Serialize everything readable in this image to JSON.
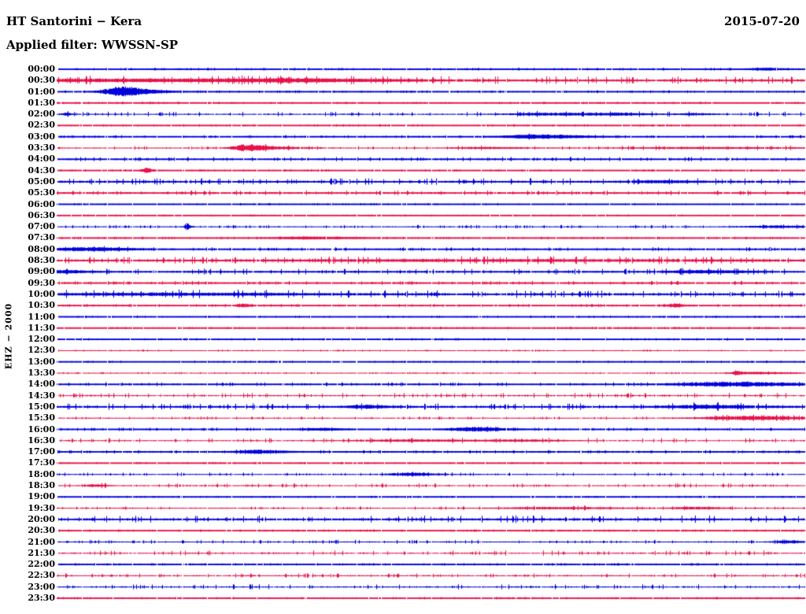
{
  "header": {
    "title": "HT Santorini − Kera",
    "date": "2015-07-20",
    "filter": "Applied filter: WWSSN-SP"
  },
  "side": {
    "channel_label": "EHZ − 2000"
  },
  "chart_data": {
    "type": "line",
    "subtype": "helicorder-day-plot",
    "title": "HT Santorini − Kera",
    "date": "2015-07-20",
    "applied_filter": "WWSSN-SP",
    "channel": "EHZ",
    "gain_scale": "2000",
    "row_duration_minutes": 30,
    "rows_count": 48,
    "legend_position": "none",
    "grid": false,
    "palette": {
      "blue": "#0000dd",
      "red": "#e8114b",
      "text": "#000000",
      "background": "#ffffff"
    },
    "rows": [
      {
        "time": "00:00",
        "color": "blue",
        "thick": 2,
        "noise": 0.4,
        "events": [
          {
            "pos": 0.945,
            "width": 0.015,
            "amp": 1.0
          }
        ]
      },
      {
        "time": "00:30",
        "color": "red",
        "thick": 2,
        "noise": 1.9,
        "events": [
          {
            "pos": 0.1,
            "width": 0.18,
            "amp": 1.5
          },
          {
            "pos": 0.32,
            "width": 0.08,
            "amp": 1.1
          }
        ]
      },
      {
        "time": "01:00",
        "color": "blue",
        "thick": 2,
        "noise": 0.4,
        "events": [
          {
            "pos": 0.082,
            "width": 0.018,
            "amp": 5.0
          },
          {
            "pos": 0.105,
            "width": 0.025,
            "amp": 2.0
          }
        ]
      },
      {
        "time": "01:30",
        "color": "red",
        "thick": 2,
        "noise": 0.3,
        "events": []
      },
      {
        "time": "02:00",
        "color": "blue",
        "thick": 1,
        "noise": 1.3,
        "events": [
          {
            "pos": 0.012,
            "width": 0.004,
            "amp": 2.0
          },
          {
            "pos": 0.66,
            "width": 0.05,
            "amp": 1.6
          },
          {
            "pos": 0.75,
            "width": 0.03,
            "amp": 1.2
          },
          {
            "pos": 0.85,
            "width": 0.02,
            "amp": 1.0
          }
        ]
      },
      {
        "time": "02:30",
        "color": "red",
        "thick": 2,
        "noise": 0.3,
        "events": []
      },
      {
        "time": "03:00",
        "color": "blue",
        "thick": 2,
        "noise": 0.5,
        "events": [
          {
            "pos": 0.64,
            "width": 0.035,
            "amp": 2.2
          }
        ]
      },
      {
        "time": "03:30",
        "color": "red",
        "thick": 1,
        "noise": 1.0,
        "events": [
          {
            "pos": 0.251,
            "width": 0.016,
            "amp": 4.0
          },
          {
            "pos": 0.285,
            "width": 0.03,
            "amp": 1.6
          },
          {
            "pos": 0.57,
            "width": 0.04,
            "amp": 1.0
          },
          {
            "pos": 0.86,
            "width": 0.1,
            "amp": 0.9
          }
        ]
      },
      {
        "time": "04:00",
        "color": "blue",
        "thick": 2,
        "noise": 0.9,
        "events": []
      },
      {
        "time": "04:30",
        "color": "red",
        "thick": 2,
        "noise": 0.3,
        "events": [
          {
            "pos": 0.119,
            "width": 0.005,
            "amp": 2.6
          }
        ]
      },
      {
        "time": "05:00",
        "color": "blue",
        "thick": 2,
        "noise": 1.6,
        "events": [
          {
            "pos": 0.8,
            "width": 0.03,
            "amp": 1.2
          }
        ]
      },
      {
        "time": "05:30",
        "color": "red",
        "thick": 2,
        "noise": 1.1,
        "events": []
      },
      {
        "time": "06:00",
        "color": "blue",
        "thick": 2,
        "noise": 0.25,
        "events": []
      },
      {
        "time": "06:30",
        "color": "red",
        "thick": 2,
        "noise": 0.2,
        "events": []
      },
      {
        "time": "07:00",
        "color": "blue",
        "thick": 1,
        "noise": 0.9,
        "events": [
          {
            "pos": 0.174,
            "width": 0.003,
            "amp": 4.5
          },
          {
            "pos": 0.96,
            "width": 0.04,
            "amp": 1.3
          }
        ]
      },
      {
        "time": "07:30",
        "color": "red",
        "thick": 2,
        "noise": 0.4,
        "events": [
          {
            "pos": 0.335,
            "width": 0.04,
            "amp": 1.0
          }
        ]
      },
      {
        "time": "08:00",
        "color": "blue",
        "thick": 2,
        "noise": 0.8,
        "events": [
          {
            "pos": 0.04,
            "width": 0.035,
            "amp": 1.8
          }
        ]
      },
      {
        "time": "08:30",
        "color": "red",
        "thick": 2,
        "noise": 1.9,
        "events": [
          {
            "pos": 0.55,
            "width": 0.25,
            "amp": 0.8
          }
        ]
      },
      {
        "time": "09:00",
        "color": "blue",
        "thick": 2,
        "noise": 1.4,
        "events": [
          {
            "pos": 0.005,
            "width": 0.02,
            "amp": 1.6
          },
          {
            "pos": 0.86,
            "width": 0.035,
            "amp": 1.6
          }
        ]
      },
      {
        "time": "09:30",
        "color": "red",
        "thick": 2,
        "noise": 0.8,
        "events": []
      },
      {
        "time": "10:00",
        "color": "blue",
        "thick": 2,
        "noise": 2.0,
        "events": [
          {
            "pos": 0.12,
            "width": 0.14,
            "amp": 1.0
          }
        ]
      },
      {
        "time": "10:30",
        "color": "red",
        "thick": 2,
        "noise": 0.5,
        "events": [
          {
            "pos": 0.248,
            "width": 0.006,
            "amp": 1.8
          },
          {
            "pos": 0.825,
            "width": 0.006,
            "amp": 2.2
          }
        ]
      },
      {
        "time": "11:00",
        "color": "blue",
        "thick": 2,
        "noise": 0.3,
        "events": []
      },
      {
        "time": "11:30",
        "color": "red",
        "thick": 2,
        "noise": 0.35,
        "events": []
      },
      {
        "time": "12:00",
        "color": "blue",
        "thick": 2,
        "noise": 0.3,
        "events": []
      },
      {
        "time": "12:30",
        "color": "red",
        "thick": 1,
        "noise": 0.4,
        "events": []
      },
      {
        "time": "13:00",
        "color": "blue",
        "thick": 2,
        "noise": 0.3,
        "events": []
      },
      {
        "time": "13:30",
        "color": "red",
        "thick": 1,
        "noise": 0.4,
        "events": [
          {
            "pos": 0.908,
            "width": 0.004,
            "amp": 2.2
          },
          {
            "pos": 0.935,
            "width": 0.03,
            "amp": 1.4
          }
        ]
      },
      {
        "time": "14:00",
        "color": "blue",
        "thick": 2,
        "noise": 0.8,
        "events": [
          {
            "pos": 0.9,
            "width": 0.06,
            "amp": 2.4
          }
        ]
      },
      {
        "time": "14:30",
        "color": "red",
        "thick": 1,
        "noise": 1.4,
        "events": []
      },
      {
        "time": "15:00",
        "color": "blue",
        "thick": 2,
        "noise": 1.6,
        "events": [
          {
            "pos": 0.41,
            "width": 0.02,
            "amp": 1.6
          },
          {
            "pos": 0.865,
            "width": 0.045,
            "amp": 1.7
          }
        ]
      },
      {
        "time": "15:30",
        "color": "red",
        "thick": 1,
        "noise": 0.8,
        "events": [
          {
            "pos": 0.925,
            "width": 0.055,
            "amp": 2.8
          }
        ]
      },
      {
        "time": "16:00",
        "color": "blue",
        "thick": 2,
        "noise": 0.6,
        "events": [
          {
            "pos": 0.35,
            "width": 0.02,
            "amp": 1.0
          },
          {
            "pos": 0.556,
            "width": 0.025,
            "amp": 2.2
          }
        ]
      },
      {
        "time": "16:30",
        "color": "red",
        "thick": 1,
        "noise": 1.3,
        "events": [
          {
            "pos": 0.47,
            "width": 0.06,
            "amp": 1.3
          },
          {
            "pos": 0.62,
            "width": 0.04,
            "amp": 1.0
          }
        ]
      },
      {
        "time": "17:00",
        "color": "blue",
        "thick": 2,
        "noise": 0.6,
        "events": [
          {
            "pos": 0.265,
            "width": 0.022,
            "amp": 1.8
          }
        ]
      },
      {
        "time": "17:30",
        "color": "red",
        "thick": 2,
        "noise": 0.3,
        "events": []
      },
      {
        "time": "18:00",
        "color": "blue",
        "thick": 1,
        "noise": 0.9,
        "events": [
          {
            "pos": 0.47,
            "width": 0.025,
            "amp": 2.0
          }
        ]
      },
      {
        "time": "18:30",
        "color": "red",
        "thick": 1,
        "noise": 1.1,
        "events": [
          {
            "pos": 0.05,
            "width": 0.01,
            "amp": 1.6
          }
        ]
      },
      {
        "time": "19:00",
        "color": "blue",
        "thick": 2,
        "noise": 0.25,
        "events": []
      },
      {
        "time": "19:30",
        "color": "red",
        "thick": 1,
        "noise": 0.9,
        "events": [
          {
            "pos": 0.66,
            "width": 0.06,
            "amp": 1.2
          },
          {
            "pos": 0.85,
            "width": 0.025,
            "amp": 1.3
          }
        ]
      },
      {
        "time": "20:00",
        "color": "blue",
        "thick": 2,
        "noise": 1.9,
        "events": []
      },
      {
        "time": "20:30",
        "color": "red",
        "thick": 2,
        "noise": 0.3,
        "events": []
      },
      {
        "time": "21:00",
        "color": "blue",
        "thick": 1,
        "noise": 1.0,
        "events": [
          {
            "pos": 0.975,
            "width": 0.015,
            "amp": 2.0
          }
        ]
      },
      {
        "time": "21:30",
        "color": "red",
        "thick": 1,
        "noise": 1.4,
        "events": []
      },
      {
        "time": "22:00",
        "color": "blue",
        "thick": 2,
        "noise": 0.35,
        "events": []
      },
      {
        "time": "22:30",
        "color": "red",
        "thick": 1,
        "noise": 1.2,
        "events": []
      },
      {
        "time": "23:00",
        "color": "blue",
        "thick": 1,
        "noise": 1.4,
        "events": []
      },
      {
        "time": "23:30",
        "color": "red",
        "thick": 2,
        "noise": 0.3,
        "events": []
      }
    ]
  }
}
